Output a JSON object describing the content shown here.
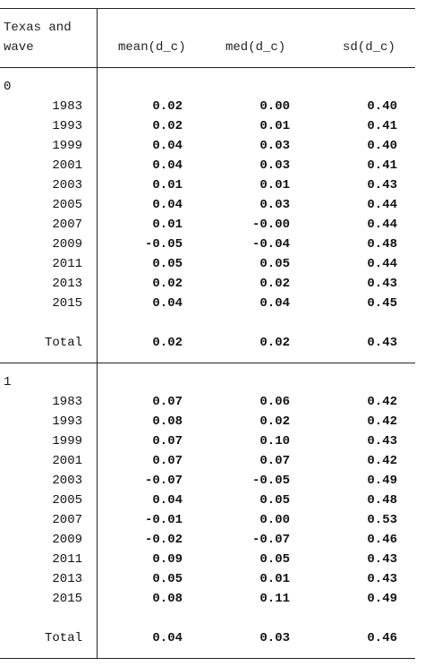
{
  "header": {
    "row_label_line1": "Texas and",
    "row_label_line2": "wave",
    "col_mean": "mean(d_c)",
    "col_med": "med(d_c)",
    "col_sd": "sd(d_c)"
  },
  "groups": [
    {
      "label": "0",
      "rows": [
        {
          "wave": "1983",
          "mean": "0.02",
          "med": "0.00",
          "sd": "0.40"
        },
        {
          "wave": "1993",
          "mean": "0.02",
          "med": "0.01",
          "sd": "0.41"
        },
        {
          "wave": "1999",
          "mean": "0.04",
          "med": "0.03",
          "sd": "0.40"
        },
        {
          "wave": "2001",
          "mean": "0.04",
          "med": "0.03",
          "sd": "0.41"
        },
        {
          "wave": "2003",
          "mean": "0.01",
          "med": "0.01",
          "sd": "0.43"
        },
        {
          "wave": "2005",
          "mean": "0.04",
          "med": "0.03",
          "sd": "0.44"
        },
        {
          "wave": "2007",
          "mean": "0.01",
          "med": "-0.00",
          "sd": "0.44"
        },
        {
          "wave": "2009",
          "mean": "-0.05",
          "med": "-0.04",
          "sd": "0.48"
        },
        {
          "wave": "2011",
          "mean": "0.05",
          "med": "0.05",
          "sd": "0.44"
        },
        {
          "wave": "2013",
          "mean": "0.02",
          "med": "0.02",
          "sd": "0.43"
        },
        {
          "wave": "2015",
          "mean": "0.04",
          "med": "0.04",
          "sd": "0.45"
        }
      ],
      "total": {
        "wave": "Total",
        "mean": "0.02",
        "med": "0.02",
        "sd": "0.43"
      }
    },
    {
      "label": "1",
      "rows": [
        {
          "wave": "1983",
          "mean": "0.07",
          "med": "0.06",
          "sd": "0.42"
        },
        {
          "wave": "1993",
          "mean": "0.08",
          "med": "0.02",
          "sd": "0.42"
        },
        {
          "wave": "1999",
          "mean": "0.07",
          "med": "0.10",
          "sd": "0.43"
        },
        {
          "wave": "2001",
          "mean": "0.07",
          "med": "0.07",
          "sd": "0.42"
        },
        {
          "wave": "2003",
          "mean": "-0.07",
          "med": "-0.05",
          "sd": "0.49"
        },
        {
          "wave": "2005",
          "mean": "0.04",
          "med": "0.05",
          "sd": "0.48"
        },
        {
          "wave": "2007",
          "mean": "-0.01",
          "med": "0.00",
          "sd": "0.53"
        },
        {
          "wave": "2009",
          "mean": "-0.02",
          "med": "-0.07",
          "sd": "0.46"
        },
        {
          "wave": "2011",
          "mean": "0.09",
          "med": "0.05",
          "sd": "0.43"
        },
        {
          "wave": "2013",
          "mean": "0.05",
          "med": "0.01",
          "sd": "0.43"
        },
        {
          "wave": "2015",
          "mean": "0.08",
          "med": "0.11",
          "sd": "0.49"
        }
      ],
      "total": {
        "wave": "Total",
        "mean": "0.04",
        "med": "0.03",
        "sd": "0.46"
      }
    }
  ]
}
